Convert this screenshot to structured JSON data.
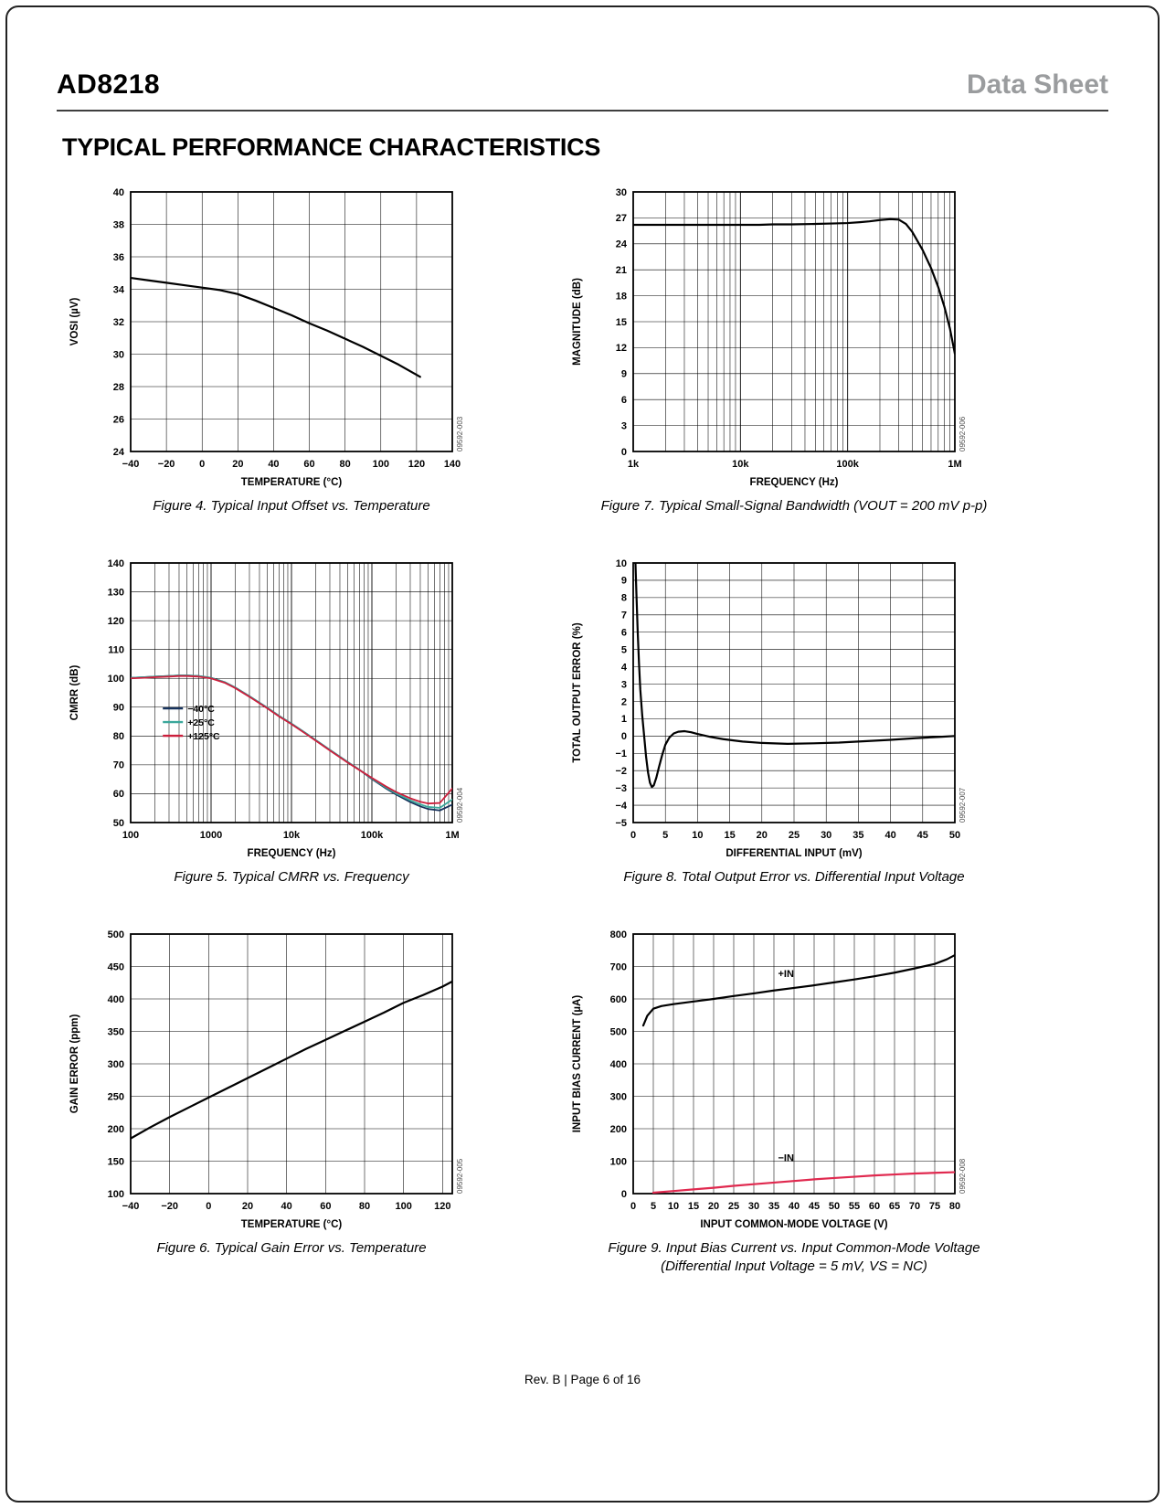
{
  "page": {
    "header": {
      "product": "AD8218",
      "doc_type": "Data Sheet"
    },
    "section_title": "TYPICAL PERFORMANCE CHARACTERISTICS",
    "footer": "Rev. B | Page 6 of 16"
  },
  "chart_data": [
    {
      "id": "fig4",
      "type": "line",
      "caption": "Figure 4. Typical Input Offset vs. Temperature",
      "watermark": "09592-003",
      "xlabel": "TEMPERATURE (°C)",
      "ylabel": "VOSI (µV)",
      "x_scale": "linear",
      "xlim": [
        -40,
        140
      ],
      "ylim": [
        24,
        40
      ],
      "xticks": [
        -40,
        -20,
        0,
        20,
        40,
        60,
        80,
        100,
        120,
        140
      ],
      "xtick_labels": [
        "−40",
        "−20",
        "0",
        "20",
        "40",
        "60",
        "80",
        "100",
        "120",
        "140"
      ],
      "yticks": [
        24,
        26,
        28,
        30,
        32,
        34,
        36,
        38,
        40
      ],
      "ytick_labels": [
        "24",
        "26",
        "28",
        "30",
        "32",
        "34",
        "36",
        "38",
        "40"
      ],
      "series": [
        {
          "name": "input-offset",
          "color": "#000000",
          "width": 2.2,
          "x": [
            -40,
            -30,
            -20,
            -10,
            0,
            10,
            20,
            30,
            40,
            50,
            60,
            70,
            80,
            90,
            100,
            110,
            122
          ],
          "y": [
            34.7,
            34.55,
            34.4,
            34.25,
            34.1,
            33.95,
            33.7,
            33.3,
            32.85,
            32.4,
            31.9,
            31.45,
            30.95,
            30.45,
            29.9,
            29.35,
            28.6
          ]
        }
      ]
    },
    {
      "id": "fig7",
      "type": "line",
      "caption": "Figure 7. Typical Small-Signal Bandwidth (VOUT = 200 mV p-p)",
      "watermark": "09592-006",
      "xlabel": "FREQUENCY (Hz)",
      "ylabel": "MAGNITUDE (dB)",
      "x_scale": "log",
      "xlim": [
        1000,
        1000000
      ],
      "ylim": [
        0,
        30
      ],
      "xticks": [
        1000,
        10000,
        100000,
        1000000
      ],
      "xtick_labels": [
        "1k",
        "10k",
        "100k",
        "1M"
      ],
      "yticks": [
        0,
        3,
        6,
        9,
        12,
        15,
        18,
        21,
        24,
        27,
        30
      ],
      "ytick_labels": [
        "0",
        "3",
        "6",
        "9",
        "12",
        "15",
        "18",
        "21",
        "24",
        "27",
        "30"
      ],
      "series": [
        {
          "name": "magnitude",
          "color": "#000000",
          "width": 2.2,
          "x": [
            1000,
            1500,
            2000,
            3000,
            5000,
            7000,
            10000,
            15000,
            20000,
            30000,
            50000,
            70000,
            100000,
            130000,
            160000,
            200000,
            250000,
            300000,
            350000,
            400000,
            500000,
            600000,
            700000,
            800000,
            900000,
            1000000
          ],
          "y": [
            26.2,
            26.2,
            26.2,
            26.2,
            26.2,
            26.2,
            26.2,
            26.2,
            26.25,
            26.25,
            26.3,
            26.35,
            26.4,
            26.5,
            26.6,
            26.75,
            26.85,
            26.8,
            26.3,
            25.4,
            23.3,
            21.2,
            19.0,
            16.7,
            14.2,
            11.3
          ]
        }
      ]
    },
    {
      "id": "fig5",
      "type": "line",
      "caption": "Figure 5. Typical CMRR vs. Frequency",
      "watermark": "09592-004",
      "xlabel": "FREQUENCY (Hz)",
      "ylabel": "CMRR (dB)",
      "x_scale": "log",
      "xlim": [
        100,
        1000000
      ],
      "ylim": [
        50,
        140
      ],
      "xticks": [
        100,
        1000,
        10000,
        100000,
        1000000
      ],
      "xtick_labels": [
        "100",
        "1000",
        "10k",
        "100k",
        "1M"
      ],
      "yticks": [
        50,
        60,
        70,
        80,
        90,
        100,
        110,
        120,
        130,
        140
      ],
      "ytick_labels": [
        "50",
        "60",
        "70",
        "80",
        "90",
        "100",
        "110",
        "120",
        "130",
        "140"
      ],
      "legend": {
        "fx": 0.1,
        "fy": 0.56,
        "entries": [
          {
            "label": "−40°C",
            "color": "#16325c"
          },
          {
            "label": "+25°C",
            "color": "#3aa79b"
          },
          {
            "label": "+125°C",
            "color": "#cc1f3c"
          }
        ]
      },
      "series": [
        {
          "name": "-40C",
          "color": "#16325c",
          "width": 1.8,
          "x": [
            100,
            150,
            200,
            300,
            400,
            500,
            700,
            1000,
            1500,
            2000,
            3000,
            5000,
            7000,
            10000,
            15000,
            20000,
            30000,
            50000,
            70000,
            100000,
            150000,
            200000,
            300000,
            400000,
            500000,
            700000,
            1000000
          ],
          "y": [
            100.2,
            100.4,
            100.6,
            100.8,
            101,
            101,
            100.8,
            100.2,
            98.6,
            96.8,
            93.8,
            89.8,
            87,
            84.3,
            81,
            78.6,
            75.2,
            71,
            68.3,
            65.1,
            61.8,
            59.7,
            57.1,
            55.6,
            54.7,
            54.2,
            56.2
          ]
        },
        {
          "name": "+25C",
          "color": "#3aa79b",
          "width": 1.8,
          "x": [
            100,
            150,
            200,
            300,
            400,
            500,
            700,
            1000,
            1500,
            2000,
            3000,
            5000,
            7000,
            10000,
            15000,
            20000,
            30000,
            50000,
            70000,
            100000,
            150000,
            200000,
            300000,
            400000,
            500000,
            700000,
            1000000
          ],
          "y": [
            100.2,
            100.4,
            100.6,
            100.8,
            101,
            101,
            100.8,
            100.2,
            98.6,
            96.8,
            93.8,
            89.8,
            87,
            84.3,
            81,
            78.6,
            75.2,
            71,
            68.3,
            65.3,
            62.1,
            60.1,
            57.7,
            56.3,
            55.4,
            55.1,
            58.0
          ]
        },
        {
          "name": "+125C",
          "color": "#cc1f3c",
          "width": 1.8,
          "x": [
            100,
            150,
            200,
            300,
            400,
            500,
            700,
            1000,
            1500,
            2000,
            3000,
            5000,
            7000,
            10000,
            15000,
            20000,
            30000,
            50000,
            70000,
            100000,
            150000,
            200000,
            300000,
            400000,
            500000,
            700000,
            1000000
          ],
          "y": [
            100.0,
            100.2,
            100.4,
            100.6,
            100.8,
            100.8,
            100.6,
            100.0,
            98.4,
            96.6,
            93.6,
            89.6,
            86.8,
            84.1,
            80.8,
            78.4,
            75.0,
            70.8,
            68.2,
            65.5,
            62.5,
            60.6,
            58.4,
            57.2,
            56.6,
            56.8,
            61.8
          ]
        }
      ]
    },
    {
      "id": "fig8",
      "type": "line",
      "caption": "Figure 8. Total Output Error vs. Differential Input Voltage",
      "watermark": "09592-007",
      "xlabel": "DIFFERENTIAL INPUT (mV)",
      "ylabel": "TOTAL OUTPUT ERROR (%)",
      "x_scale": "linear",
      "xlim": [
        0,
        50
      ],
      "ylim": [
        -5,
        10
      ],
      "xticks": [
        0,
        5,
        10,
        15,
        20,
        25,
        30,
        35,
        40,
        45,
        50
      ],
      "xtick_labels": [
        "0",
        "5",
        "10",
        "15",
        "20",
        "25",
        "30",
        "35",
        "40",
        "45",
        "50"
      ],
      "yticks": [
        -5,
        -4,
        -3,
        -2,
        -1,
        0,
        1,
        2,
        3,
        4,
        5,
        6,
        7,
        8,
        9,
        10
      ],
      "ytick_labels": [
        "−5",
        "−4",
        "−3",
        "−2",
        "−1",
        "0",
        "1",
        "2",
        "3",
        "4",
        "5",
        "6",
        "7",
        "8",
        "9",
        "10"
      ],
      "series": [
        {
          "name": "total-output-error",
          "color": "#000000",
          "width": 2.2,
          "x": [
            0.35,
            0.5,
            0.7,
            0.9,
            1.1,
            1.4,
            1.7,
            2.0,
            2.3,
            2.6,
            2.9,
            3.2,
            3.6,
            4.0,
            4.5,
            5.0,
            5.6,
            6.3,
            7.0,
            8.0,
            9.0,
            10,
            12,
            14,
            17,
            20,
            24,
            28,
            32,
            36,
            40,
            44,
            48,
            50
          ],
          "y": [
            10,
            8.2,
            6.0,
            4.2,
            2.7,
            1.2,
            0.0,
            -1.2,
            -2.1,
            -2.7,
            -2.95,
            -2.85,
            -2.4,
            -1.8,
            -1.1,
            -0.5,
            -0.1,
            0.15,
            0.25,
            0.28,
            0.22,
            0.12,
            -0.05,
            -0.18,
            -0.32,
            -0.4,
            -0.45,
            -0.42,
            -0.38,
            -0.3,
            -0.22,
            -0.12,
            -0.04,
            0.0
          ]
        }
      ]
    },
    {
      "id": "fig6",
      "type": "line",
      "caption": "Figure 6. Typical Gain Error vs. Temperature",
      "watermark": "09592-005",
      "xlabel": "TEMPERATURE (°C)",
      "ylabel": "GAIN ERROR (ppm)",
      "x_scale": "linear",
      "xlim": [
        -40,
        125
      ],
      "ylim": [
        100,
        500
      ],
      "xticks": [
        -40,
        -20,
        0,
        20,
        40,
        60,
        80,
        100,
        120
      ],
      "xtick_labels": [
        "−40",
        "−20",
        "0",
        "20",
        "40",
        "60",
        "80",
        "100",
        "120"
      ],
      "yticks": [
        100,
        150,
        200,
        250,
        300,
        350,
        400,
        450,
        500
      ],
      "ytick_labels": [
        "100",
        "150",
        "200",
        "250",
        "300",
        "350",
        "400",
        "450",
        "500"
      ],
      "series": [
        {
          "name": "gain-error",
          "color": "#000000",
          "width": 2.2,
          "x": [
            -40,
            -30,
            -20,
            -10,
            0,
            10,
            20,
            30,
            40,
            50,
            60,
            70,
            80,
            90,
            100,
            110,
            120,
            125
          ],
          "y": [
            185,
            202,
            218,
            233,
            248,
            263,
            278,
            293,
            308,
            323,
            337,
            351,
            365,
            379,
            394,
            406,
            419,
            427
          ]
        }
      ]
    },
    {
      "id": "fig9",
      "type": "line",
      "caption": "Figure 9. Input Bias Current vs. Input Common-Mode Voltage",
      "caption2": "(Differential Input Voltage = 5 mV, VS = NC)",
      "watermark": "09592-008",
      "xlabel": "INPUT COMMON-MODE VOLTAGE (V)",
      "ylabel": "INPUT BIAS CURRENT (µA)",
      "x_scale": "linear",
      "xlim": [
        0,
        80
      ],
      "ylim": [
        0,
        800
      ],
      "xticks": [
        0,
        5,
        10,
        15,
        20,
        25,
        30,
        35,
        40,
        45,
        50,
        55,
        60,
        65,
        70,
        75,
        80
      ],
      "xtick_labels": [
        "0",
        "5",
        "10",
        "15",
        "20",
        "25",
        "30",
        "35",
        "40",
        "45",
        "50",
        "55",
        "60",
        "65",
        "70",
        "75",
        "80"
      ],
      "yticks": [
        0,
        100,
        200,
        300,
        400,
        500,
        600,
        700,
        800
      ],
      "ytick_labels": [
        "0",
        "100",
        "200",
        "300",
        "400",
        "500",
        "600",
        "700",
        "800"
      ],
      "annotations": [
        {
          "text": "+IN",
          "x": 38,
          "y": 668
        },
        {
          "text": "−IN",
          "x": 38,
          "y": 100
        }
      ],
      "series": [
        {
          "name": "+IN",
          "color": "#000000",
          "width": 2.2,
          "x": [
            2.5,
            3.5,
            5,
            7,
            10,
            15,
            20,
            25,
            30,
            35,
            40,
            45,
            50,
            55,
            60,
            65,
            70,
            75,
            78,
            80
          ],
          "y": [
            518,
            548,
            570,
            578,
            584,
            592,
            600,
            609,
            617,
            626,
            634,
            642,
            651,
            660,
            670,
            681,
            694,
            708,
            722,
            735
          ]
        },
        {
          "name": "-IN",
          "color": "#e0294f",
          "width": 2.2,
          "x": [
            5,
            10,
            15,
            20,
            25,
            30,
            35,
            40,
            45,
            50,
            55,
            60,
            65,
            70,
            75,
            80
          ],
          "y": [
            3,
            8,
            13,
            18,
            24,
            29,
            34,
            39,
            44,
            48,
            52,
            56,
            59,
            62,
            64,
            66
          ]
        }
      ]
    }
  ]
}
